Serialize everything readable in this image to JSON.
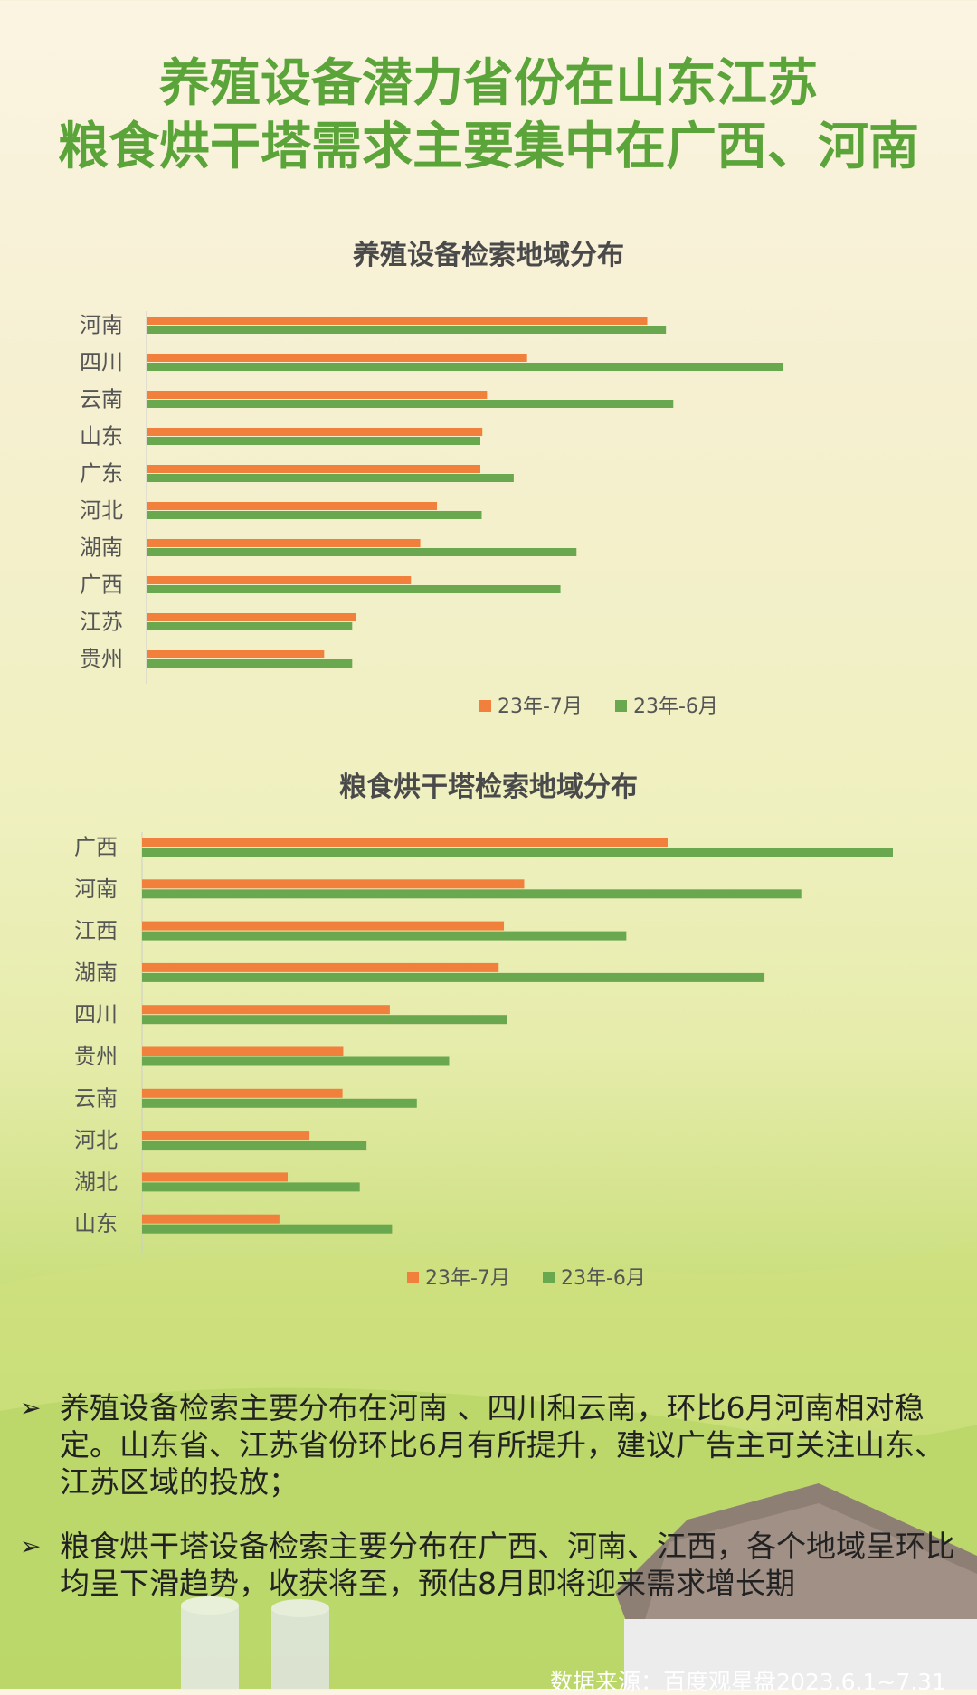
{
  "headline": {
    "line1": "养殖设备潜力省份在山东江苏",
    "line2": "粮食烘干塔需求主要集中在广西、河南"
  },
  "colors": {
    "headline": "#5aa43a",
    "series_jul": "#f0803c",
    "series_jun": "#6aa84f"
  },
  "chart_data": [
    {
      "type": "bar",
      "orientation": "horizontal",
      "title": "养殖设备检索地域分布",
      "categories": [
        "河南",
        "四川",
        "云南",
        "山东",
        "广东",
        "河北",
        "湖南",
        "广西",
        "江苏",
        "贵州"
      ],
      "series": [
        {
          "name": "23年-7月",
          "values": [
            75,
            57,
            51,
            50.3,
            50,
            43.5,
            41,
            39.6,
            31.3,
            26.6
          ]
        },
        {
          "name": "23年-6月",
          "values": [
            77.8,
            95.4,
            78.9,
            50,
            55,
            50.2,
            64.4,
            62,
            30.8,
            30.8
          ]
        }
      ],
      "xlim": [
        0,
        100
      ],
      "legend": "bottom"
    },
    {
      "type": "bar",
      "orientation": "horizontal",
      "title": "粮食烘干塔检索地域分布",
      "categories": [
        "广西",
        "河南",
        "江西",
        "湖南",
        "四川",
        "贵州",
        "云南",
        "河北",
        "湖北",
        "山东"
      ],
      "series": [
        {
          "name": "23年-7月",
          "values": [
            70,
            50.9,
            48.2,
            47.5,
            33,
            26.8,
            26.7,
            22.3,
            19.4,
            18.3
          ]
        },
        {
          "name": "23年-6月",
          "values": [
            100,
            87.8,
            64.5,
            82.9,
            48.6,
            40.9,
            36.6,
            29.9,
            29,
            33.3
          ]
        }
      ],
      "xlim": [
        0,
        100
      ],
      "legend": "bottom"
    }
  ],
  "notes": [
    {
      "bullet": "➢",
      "text": "养殖设备检索主要分布在河南 、四川和云南，环比6月河南相对稳定。山东省、江苏省份环比6月有所提升，建议广告主可关注山东、江苏区域的投放；"
    },
    {
      "bullet": "➢",
      "text": "粮食烘干塔设备检索主要分布在广西、河南、江西，各个地域呈环比均呈下滑趋势，收获将至，预估8月即将迎来需求增长期"
    }
  ],
  "source": "数据来源：百度观星盘2023.6.1~7.31",
  "icons": {
    "bullet": "arrowhead-bullet-icon"
  }
}
